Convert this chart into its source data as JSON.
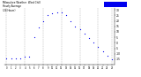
{
  "title": "Milwaukee Weather  Wind Chill\nHourly Average\n(24 Hours)",
  "hours": [
    0,
    1,
    2,
    3,
    4,
    5,
    6,
    7,
    8,
    9,
    10,
    11,
    12,
    13,
    14,
    15,
    16,
    17,
    18,
    19,
    20,
    21,
    22,
    23
  ],
  "wind_chill": [
    -14,
    -14,
    -14,
    -14,
    -13,
    -13,
    5,
    14,
    20,
    25,
    27,
    28,
    28,
    25,
    20,
    15,
    12,
    8,
    4,
    0,
    -4,
    -8,
    -12,
    -15
  ],
  "dot_color": "#0000ee",
  "bg_color": "#ffffff",
  "plot_bg": "#ffffff",
  "legend_color": "#0000ee",
  "grid_color": "#888888",
  "title_color": "#000000",
  "tick_color": "#000000",
  "ylim": [
    -20,
    32
  ],
  "ytick_vals": [
    -15,
    -10,
    -5,
    0,
    5,
    10,
    15,
    20,
    25,
    30
  ],
  "ytick_labels": [
    "-15",
    "-10",
    "-5",
    "0",
    "5",
    "10",
    "15",
    "20",
    "25",
    "30"
  ],
  "xtick_labels": [
    "0",
    "1",
    "2",
    "3",
    "4",
    "5",
    "6",
    "7",
    "8",
    "9",
    "10",
    "11",
    "12",
    "13",
    "14",
    "15",
    "16",
    "17",
    "18",
    "19",
    "20",
    "21",
    "22",
    "23"
  ],
  "vgrid_positions": [
    0,
    4,
    8,
    12,
    16,
    20,
    23
  ]
}
